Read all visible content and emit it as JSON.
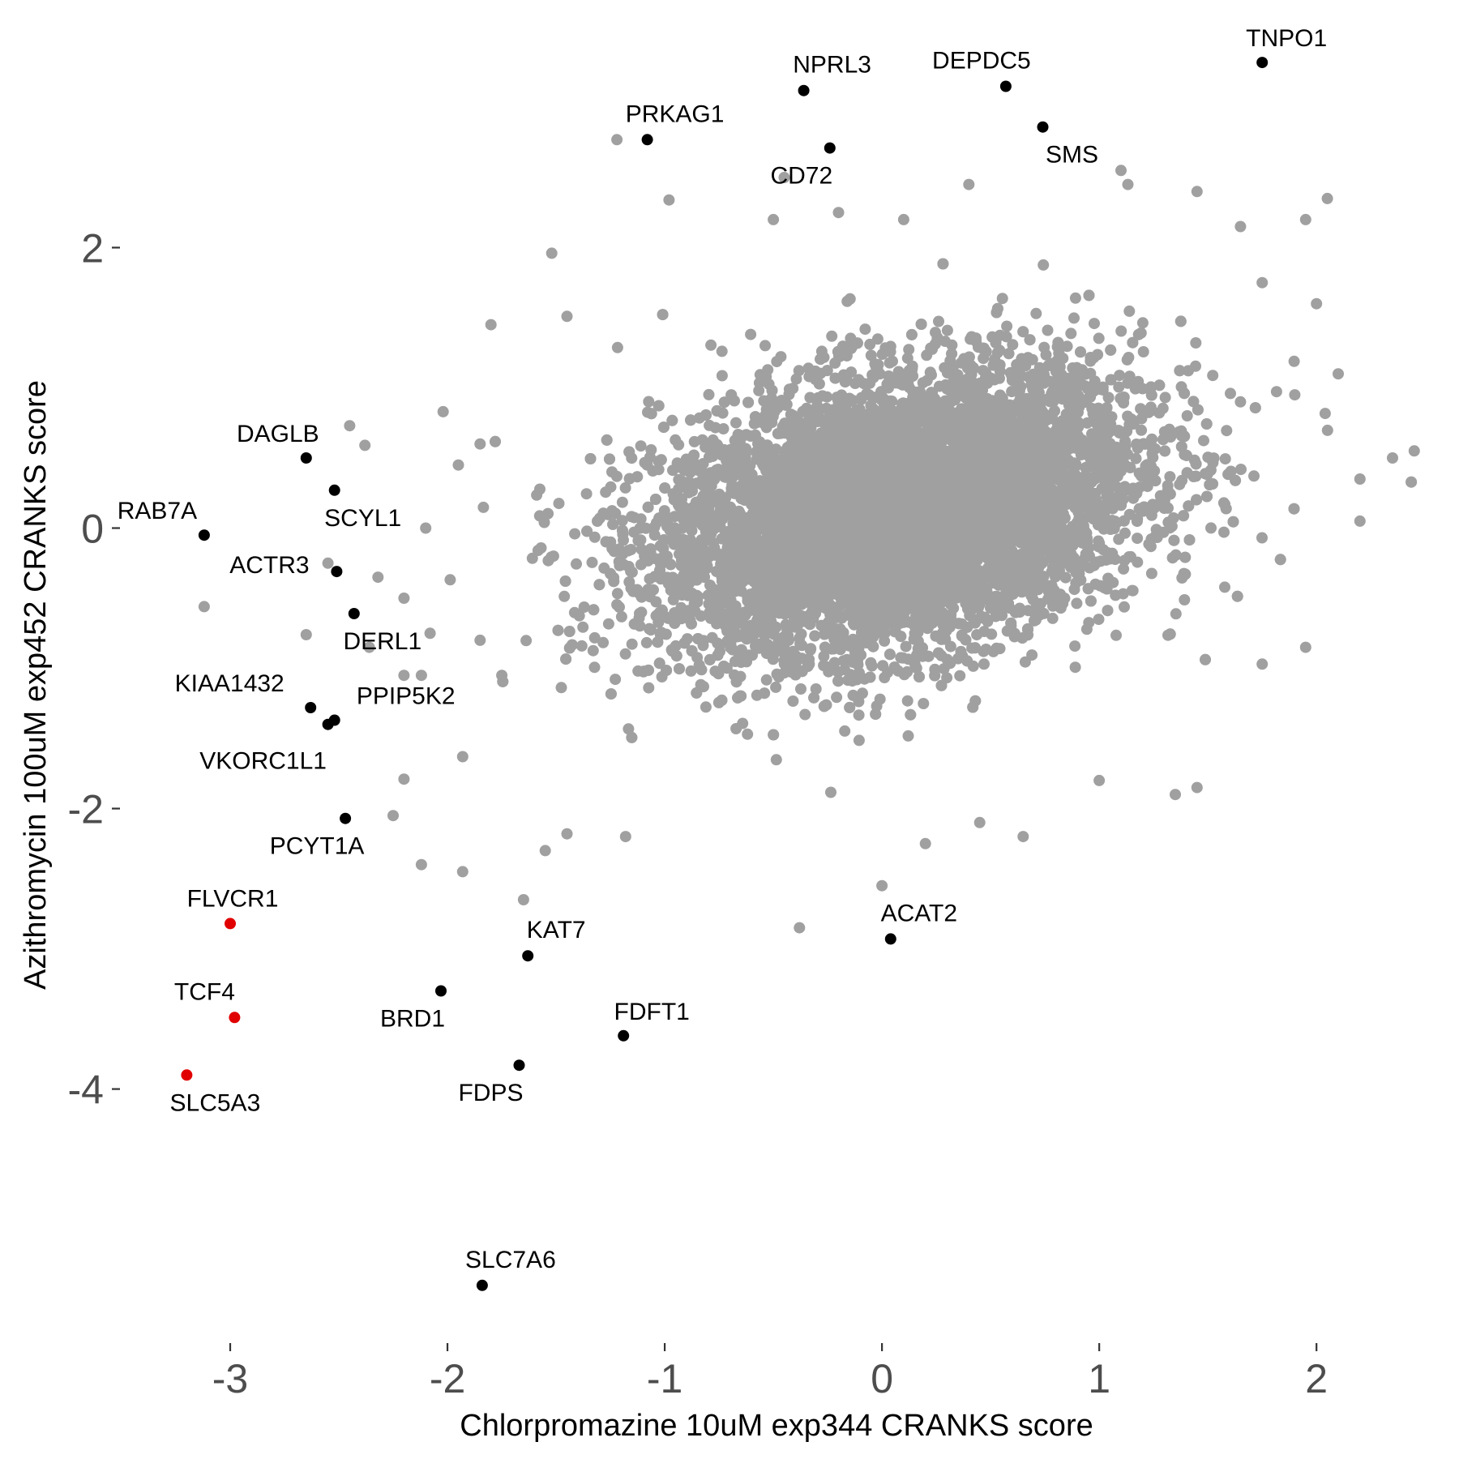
{
  "chart_data": {
    "type": "scatter",
    "xlabel": "Chlorpromazine 10uM exp344 CRANKS score",
    "ylabel": "Azithromycin 100uM exp452 CRANKS score",
    "xlim": [
      -3.5,
      2.6
    ],
    "ylim": [
      -5.8,
      3.65
    ],
    "x_ticks": [
      -3,
      -2,
      -1,
      0,
      1,
      2
    ],
    "y_ticks": [
      -4,
      -2,
      0,
      2
    ],
    "x_tick_labels": [
      "-3",
      "-2",
      "-1",
      "0",
      "1",
      "2"
    ],
    "y_tick_labels": [
      "-4",
      "-2",
      "0",
      "2"
    ],
    "grid": false,
    "legend": "none",
    "colors": {
      "background_points": "#a0a0a0",
      "highlight": "#000000",
      "red_highlight": "#e00000"
    },
    "background_cloud": {
      "description_visible": false,
      "count": 9000,
      "center": [
        0.08,
        0.12
      ],
      "sd": [
        0.55,
        0.5
      ],
      "correlation": 0.3
    },
    "outlier_points": [
      [
        -1.22,
        2.77
      ],
      [
        -0.98,
        2.34
      ],
      [
        -1.52,
        1.96
      ],
      [
        -1.45,
        1.51
      ],
      [
        -2.02,
        0.83
      ],
      [
        -2.38,
        0.59
      ],
      [
        -2.45,
        0.73
      ],
      [
        -2.55,
        -0.25
      ],
      [
        -2.36,
        -0.85
      ],
      [
        -2.65,
        -0.76
      ],
      [
        -3.12,
        -0.56
      ],
      [
        -2.32,
        -0.35
      ],
      [
        -2.2,
        -0.5
      ],
      [
        -2.2,
        -1.05
      ],
      [
        -2.08,
        -0.75
      ],
      [
        -2.12,
        -1.05
      ],
      [
        -1.85,
        -0.8
      ],
      [
        -2.2,
        -1.79
      ],
      [
        -1.93,
        -1.63
      ],
      [
        -2.25,
        -2.05
      ],
      [
        -2.12,
        -2.4
      ],
      [
        -1.93,
        -2.45
      ],
      [
        -1.65,
        -2.65
      ],
      [
        -1.45,
        -2.18
      ],
      [
        -1.18,
        -2.2
      ],
      [
        -0.38,
        -2.85
      ],
      [
        0.0,
        -2.55
      ],
      [
        0.2,
        -2.25
      ],
      [
        0.45,
        -2.1
      ],
      [
        0.65,
        -2.2
      ],
      [
        1.35,
        -1.9
      ],
      [
        1.45,
        -1.85
      ],
      [
        1.0,
        -1.8
      ],
      [
        1.75,
        -0.97
      ],
      [
        1.95,
        -0.85
      ],
      [
        2.2,
        0.05
      ],
      [
        2.35,
        0.5
      ],
      [
        2.45,
        0.55
      ],
      [
        2.1,
        1.1
      ],
      [
        2.0,
        1.6
      ],
      [
        2.05,
        2.35
      ],
      [
        1.95,
        2.2
      ],
      [
        1.75,
        1.75
      ],
      [
        1.65,
        2.15
      ],
      [
        0.4,
        2.45
      ],
      [
        0.1,
        2.2
      ],
      [
        -0.2,
        2.25
      ],
      [
        -0.5,
        2.2
      ],
      [
        -0.45,
        2.5
      ],
      [
        1.1,
        2.55
      ],
      [
        1.45,
        2.4
      ],
      [
        1.9,
        0.95
      ],
      [
        1.65,
        0.9
      ],
      [
        2.2,
        0.35
      ],
      [
        -1.8,
        1.45
      ],
      [
        -1.85,
        0.6
      ],
      [
        -1.95,
        0.45
      ],
      [
        -2.1,
        0.0
      ],
      [
        -1.55,
        -2.3
      ],
      [
        -1.75,
        -1.05
      ]
    ],
    "highlighted_genes": [
      {
        "name": "TNPO1",
        "x": 1.75,
        "y": 3.32,
        "color": "black"
      },
      {
        "name": "NPRL3",
        "x": -0.36,
        "y": 3.12,
        "color": "black"
      },
      {
        "name": "DEPDC5",
        "x": 0.57,
        "y": 3.15,
        "color": "black"
      },
      {
        "name": "PRKAG1",
        "x": -1.08,
        "y": 2.77,
        "color": "black"
      },
      {
        "name": "SMS",
        "x": 0.74,
        "y": 2.86,
        "color": "black"
      },
      {
        "name": "CD72",
        "x": -0.24,
        "y": 2.71,
        "color": "black"
      },
      {
        "name": "DAGLB",
        "x": -2.65,
        "y": 0.5,
        "color": "black"
      },
      {
        "name": "SCYL1",
        "x": -2.52,
        "y": 0.27,
        "color": "black"
      },
      {
        "name": "RAB7A",
        "x": -3.12,
        "y": -0.05,
        "color": "black"
      },
      {
        "name": "ACTR3",
        "x": -2.51,
        "y": -0.31,
        "color": "black"
      },
      {
        "name": "DERL1",
        "x": -2.43,
        "y": -0.61,
        "color": "black"
      },
      {
        "name": "KIAA1432",
        "x": -2.63,
        "y": -1.28,
        "color": "black"
      },
      {
        "name": "PPIP5K2",
        "x": -2.52,
        "y": -1.37,
        "color": "black"
      },
      {
        "name": "VKORC1L1",
        "x": -2.55,
        "y": -1.4,
        "color": "black"
      },
      {
        "name": "PCYT1A",
        "x": -2.47,
        "y": -2.07,
        "color": "black"
      },
      {
        "name": "FLVCR1",
        "x": -3.0,
        "y": -2.82,
        "color": "red"
      },
      {
        "name": "TCF4",
        "x": -2.98,
        "y": -3.49,
        "color": "red"
      },
      {
        "name": "SLC5A3",
        "x": -3.2,
        "y": -3.9,
        "color": "red"
      },
      {
        "name": "KAT7",
        "x": -1.63,
        "y": -3.05,
        "color": "black"
      },
      {
        "name": "ACAT2",
        "x": 0.04,
        "y": -2.93,
        "color": "black"
      },
      {
        "name": "BRD1",
        "x": -2.03,
        "y": -3.3,
        "color": "black"
      },
      {
        "name": "FDFT1",
        "x": -1.19,
        "y": -3.62,
        "color": "black"
      },
      {
        "name": "FDPS",
        "x": -1.67,
        "y": -3.83,
        "color": "black"
      },
      {
        "name": "SLC7A6",
        "x": -1.84,
        "y": -5.4,
        "color": "black"
      }
    ]
  }
}
